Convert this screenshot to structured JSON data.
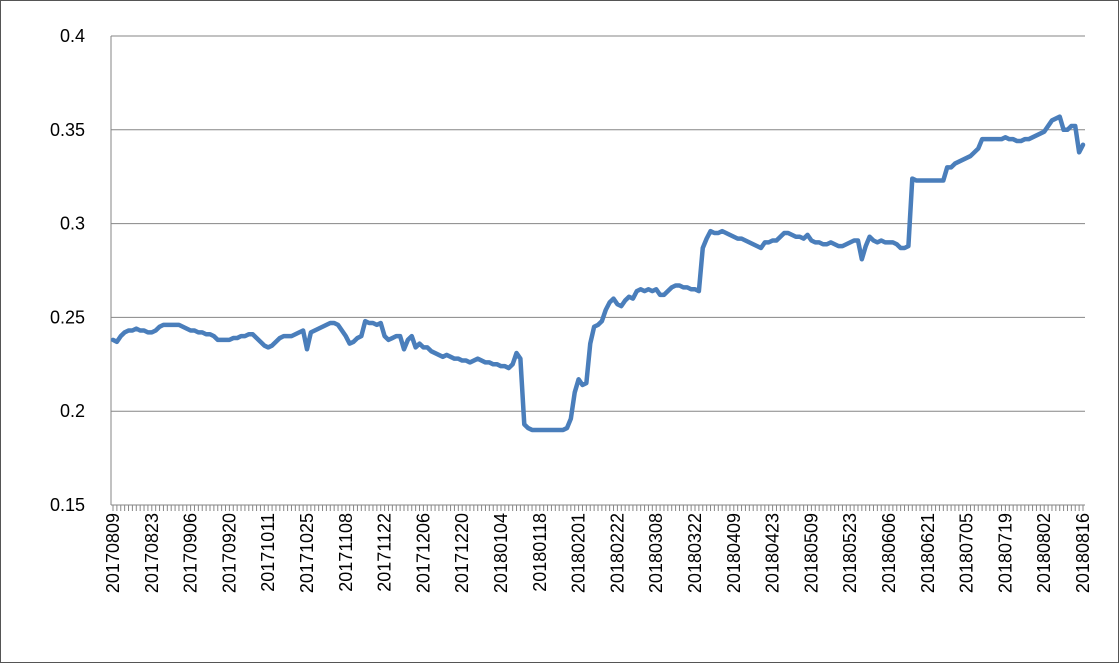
{
  "chart_data": {
    "type": "line",
    "categories": [
      "20170809",
      null,
      null,
      null,
      null,
      null,
      null,
      null,
      null,
      null,
      "20170823",
      null,
      null,
      null,
      null,
      null,
      null,
      null,
      null,
      null,
      "20170906",
      null,
      null,
      null,
      null,
      null,
      null,
      null,
      null,
      null,
      "20170920",
      null,
      null,
      null,
      null,
      null,
      null,
      null,
      null,
      null,
      "20171011",
      null,
      null,
      null,
      null,
      null,
      null,
      null,
      null,
      null,
      "20171025",
      null,
      null,
      null,
      null,
      null,
      null,
      null,
      null,
      null,
      "20171108",
      null,
      null,
      null,
      null,
      null,
      null,
      null,
      null,
      null,
      "20171122",
      null,
      null,
      null,
      null,
      null,
      null,
      null,
      null,
      null,
      "20171206",
      null,
      null,
      null,
      null,
      null,
      null,
      null,
      null,
      null,
      "20171220",
      null,
      null,
      null,
      null,
      null,
      null,
      null,
      null,
      null,
      "20180104",
      null,
      null,
      null,
      null,
      null,
      null,
      null,
      null,
      null,
      "20180118",
      null,
      null,
      null,
      null,
      null,
      null,
      null,
      null,
      null,
      "20180201",
      null,
      null,
      null,
      null,
      null,
      null,
      null,
      null,
      null,
      "20180222",
      null,
      null,
      null,
      null,
      null,
      null,
      null,
      null,
      null,
      "20180308",
      null,
      null,
      null,
      null,
      null,
      null,
      null,
      null,
      null,
      "20180322",
      null,
      null,
      null,
      null,
      null,
      null,
      null,
      null,
      null,
      "20180409",
      null,
      null,
      null,
      null,
      null,
      null,
      null,
      null,
      null,
      "20180423",
      null,
      null,
      null,
      null,
      null,
      null,
      null,
      null,
      null,
      "20180509",
      null,
      null,
      null,
      null,
      null,
      null,
      null,
      null,
      null,
      "20180523",
      null,
      null,
      null,
      null,
      null,
      null,
      null,
      null,
      null,
      "20180606",
      null,
      null,
      null,
      null,
      null,
      null,
      null,
      null,
      null,
      "20180621",
      null,
      null,
      null,
      null,
      null,
      null,
      null,
      null,
      null,
      "20180705",
      null,
      null,
      null,
      null,
      null,
      null,
      null,
      null,
      null,
      "20180719",
      null,
      null,
      null,
      null,
      null,
      null,
      null,
      null,
      null,
      "20180802",
      null,
      null,
      null,
      null,
      null,
      null,
      null,
      null,
      null,
      "20180816"
    ],
    "values": [
      0.238,
      0.237,
      0.24,
      0.242,
      0.243,
      0.243,
      0.244,
      0.243,
      0.243,
      0.242,
      0.242,
      0.243,
      0.245,
      0.246,
      0.246,
      0.246,
      0.246,
      0.246,
      0.245,
      0.244,
      0.243,
      0.243,
      0.242,
      0.242,
      0.241,
      0.241,
      0.24,
      0.238,
      0.238,
      0.238,
      0.238,
      0.239,
      0.239,
      0.24,
      0.24,
      0.241,
      0.241,
      0.239,
      0.237,
      0.235,
      0.234,
      0.235,
      0.237,
      0.239,
      0.24,
      0.24,
      0.24,
      0.241,
      0.242,
      0.243,
      0.233,
      0.242,
      0.243,
      0.244,
      0.245,
      0.246,
      0.247,
      0.247,
      0.246,
      0.243,
      0.24,
      0.236,
      0.237,
      0.239,
      0.24,
      0.248,
      0.247,
      0.247,
      0.246,
      0.247,
      0.24,
      0.238,
      0.239,
      0.24,
      0.24,
      0.233,
      0.238,
      0.24,
      0.234,
      0.236,
      0.234,
      0.234,
      0.232,
      0.231,
      0.23,
      0.229,
      0.23,
      0.229,
      0.228,
      0.228,
      0.227,
      0.227,
      0.226,
      0.227,
      0.228,
      0.227,
      0.226,
      0.226,
      0.225,
      0.225,
      0.224,
      0.224,
      0.223,
      0.225,
      0.231,
      0.228,
      0.193,
      0.191,
      0.19,
      0.19,
      0.19,
      0.19,
      0.19,
      0.19,
      0.19,
      0.19,
      0.19,
      0.191,
      0.196,
      0.21,
      0.217,
      0.214,
      0.215,
      0.236,
      0.245,
      0.246,
      0.248,
      0.254,
      0.258,
      0.26,
      0.257,
      0.256,
      0.259,
      0.261,
      0.26,
      0.264,
      0.265,
      0.264,
      0.265,
      0.264,
      0.265,
      0.262,
      0.262,
      0.264,
      0.266,
      0.267,
      0.267,
      0.266,
      0.266,
      0.265,
      0.265,
      0.264,
      0.287,
      0.292,
      0.296,
      0.295,
      0.295,
      0.296,
      0.295,
      0.294,
      0.293,
      0.292,
      0.292,
      0.291,
      0.29,
      0.289,
      0.288,
      0.287,
      0.29,
      0.29,
      0.291,
      0.291,
      0.293,
      0.295,
      0.295,
      0.294,
      0.293,
      0.293,
      0.292,
      0.294,
      0.291,
      0.29,
      0.29,
      0.289,
      0.289,
      0.29,
      0.289,
      0.288,
      0.288,
      0.289,
      0.29,
      0.291,
      0.291,
      0.281,
      0.288,
      0.293,
      0.291,
      0.29,
      0.291,
      0.29,
      0.29,
      0.29,
      0.289,
      0.287,
      0.287,
      0.288,
      0.324,
      0.323,
      0.323,
      0.323,
      0.323,
      0.323,
      0.323,
      0.323,
      0.323,
      0.33,
      0.33,
      0.332,
      0.333,
      0.334,
      0.335,
      0.336,
      0.338,
      0.34,
      0.345,
      0.345,
      0.345,
      0.345,
      0.345,
      0.345,
      0.346,
      0.345,
      0.345,
      0.344,
      0.344,
      0.345,
      0.345,
      0.346,
      0.347,
      0.348,
      0.349,
      0.352,
      0.355,
      0.356,
      0.357,
      0.35,
      0.35,
      0.352,
      0.352,
      0.338,
      0.342
    ],
    "color": "#4a7ebb",
    "ylim": [
      0.15,
      0.4
    ],
    "yticks": [
      0.15,
      0.2,
      0.25,
      0.3,
      0.35,
      0.4
    ],
    "grid": true
  }
}
